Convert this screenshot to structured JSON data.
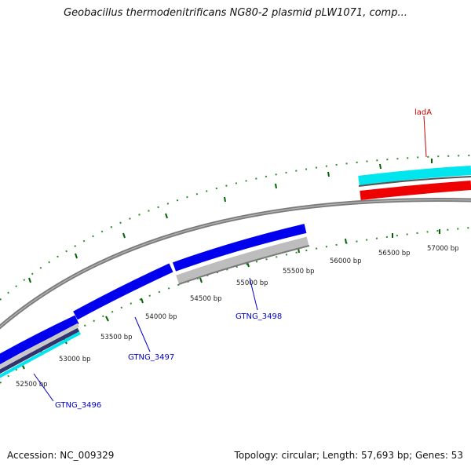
{
  "title": "Geobacillus thermodenitrificans NG80-2 plasmid pLW1071, comp...",
  "footer": {
    "accession": "Accession: NC_009329",
    "summary": "Topology: circular; Length: 57,693 bp; Genes: 53"
  },
  "ticks": [
    "52500 bp",
    "53000 bp",
    "53500 bp",
    "54000 bp",
    "54500 bp",
    "55000 bp",
    "55500 bp",
    "56000 bp",
    "56500 bp",
    "57000 bp"
  ],
  "gene_labels": [
    {
      "text": "ladA",
      "color": "#cc0000"
    },
    {
      "text": "GTNG_3498",
      "color": "#0000cc"
    },
    {
      "text": "GTNG_3497",
      "color": "#0000cc"
    },
    {
      "text": "GTNG_3496",
      "color": "#0000cc"
    }
  ],
  "colors": {
    "backbone": "#808080",
    "gene_forward": "#0000ee",
    "gene_cyan": "#00e5ee",
    "gene_red": "#ee0000",
    "gene_gray": "#c4c4c4",
    "tick": "#006400"
  }
}
